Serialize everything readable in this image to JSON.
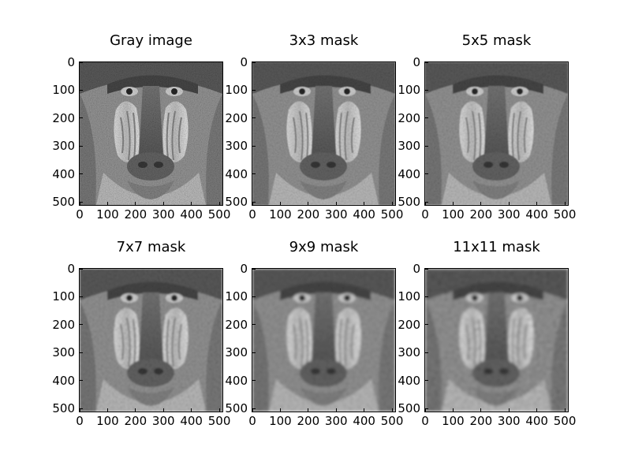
{
  "figure": {
    "panels": [
      {
        "title": "Gray image",
        "mask_size": 0
      },
      {
        "title": "3x3 mask",
        "mask_size": 3
      },
      {
        "title": "5x5 mask",
        "mask_size": 5
      },
      {
        "title": "7x7 mask",
        "mask_size": 7
      },
      {
        "title": "9x9 mask",
        "mask_size": 9
      },
      {
        "title": "11x11 mask",
        "mask_size": 11
      }
    ],
    "x_ticks": [
      "0",
      "100",
      "200",
      "300",
      "400",
      "500"
    ],
    "y_ticks": [
      "0",
      "100",
      "200",
      "300",
      "400",
      "500"
    ],
    "axis_range": [
      0,
      511
    ]
  },
  "subject": "grayscale mandrill (baboon) face"
}
